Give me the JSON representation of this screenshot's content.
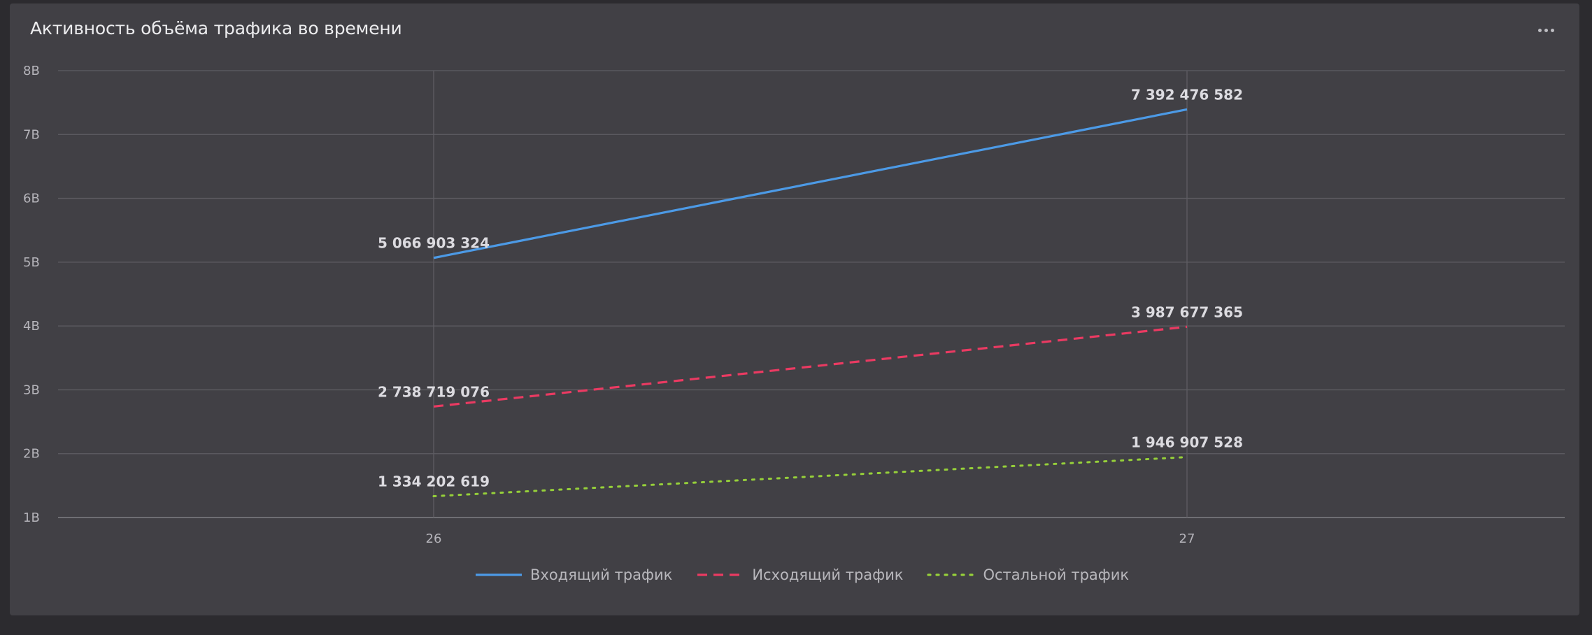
{
  "panel": {
    "title": "Активность объёма трафика во времени",
    "menu_icon": "ellipsis-icon"
  },
  "colors": {
    "background": "#2c2b2f",
    "panel": "#414045",
    "grid": "#5e5d63"
  },
  "chart_data": {
    "type": "line",
    "title": "Активность объёма трафика во времени",
    "xlabel": "",
    "ylabel": "",
    "categories": [
      "26",
      "27"
    ],
    "y_ticks": [
      "1B",
      "2B",
      "3B",
      "4B",
      "5B",
      "6B",
      "7B",
      "8B"
    ],
    "ylim": [
      1000000000,
      8000000000
    ],
    "grid": true,
    "legend_position": "bottom",
    "series": [
      {
        "name": "Входящий трафик",
        "values": [
          5066903324,
          7392476582
        ],
        "labels": [
          "5 066 903 324",
          "7 392 476 582"
        ],
        "color": "#4c9ae6",
        "style": "solid"
      },
      {
        "name": "Исходящий трафик",
        "values": [
          2738719076,
          3987677365
        ],
        "labels": [
          "2 738 719 076",
          "3 987 677 365"
        ],
        "color": "#ea3a62",
        "style": "dashed"
      },
      {
        "name": "Остальной трафик",
        "values": [
          1334202619,
          1946907528
        ],
        "labels": [
          "1 334 202 619",
          "1 946 907 528"
        ],
        "color": "#96d03a",
        "style": "dotted"
      }
    ]
  }
}
